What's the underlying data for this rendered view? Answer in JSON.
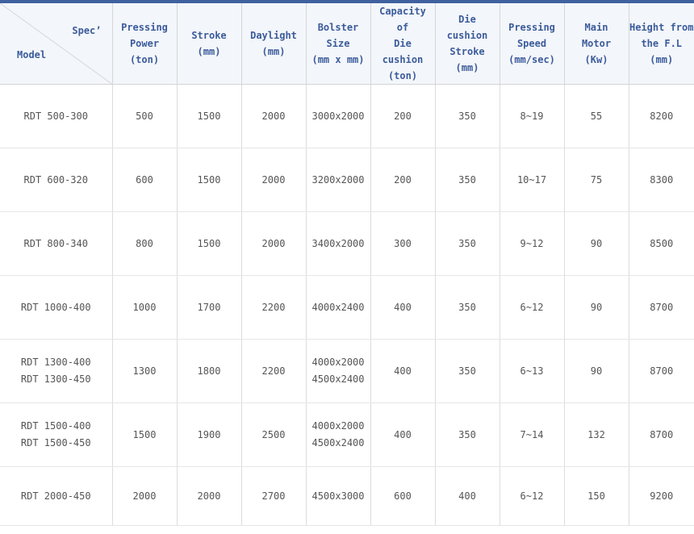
{
  "colors": {
    "top_bar": "#40619f",
    "header_bg": "#f3f6fa",
    "header_text": "#3b5b9b",
    "body_text": "#555555",
    "grid_vertical": "#dcdcdc",
    "grid_horizontal": "#e6e6e6",
    "diagonal_line": "#d8d8d8"
  },
  "table": {
    "corner": {
      "spec_label": "Spec’",
      "model_label": "Model"
    },
    "columns": [
      {
        "id": "pressing-power",
        "lines": [
          "Pressing",
          "Power",
          "(ton)"
        ]
      },
      {
        "id": "stroke",
        "lines": [
          "Stroke",
          "(mm)"
        ]
      },
      {
        "id": "daylight",
        "lines": [
          "Daylight",
          "(mm)"
        ]
      },
      {
        "id": "bolster-size",
        "lines": [
          "Bolster",
          "Size",
          "(mm x mm)"
        ]
      },
      {
        "id": "die-cushion-capacity",
        "lines": [
          "Capacity of",
          "Die cushion",
          "(ton)"
        ]
      },
      {
        "id": "die-cushion-stroke",
        "lines": [
          "Die cushion",
          "Stroke",
          "(mm)"
        ]
      },
      {
        "id": "pressing-speed",
        "lines": [
          "Pressing",
          "Speed",
          "(mm/sec)"
        ]
      },
      {
        "id": "main-motor",
        "lines": [
          "Main",
          "Motor",
          "(Kw)"
        ]
      },
      {
        "id": "height-fl",
        "lines": [
          "Height from",
          "the F.L",
          "(mm)"
        ]
      }
    ],
    "rows": [
      {
        "model": [
          "RDT 500-300"
        ],
        "pressing_power": "500",
        "stroke": "1500",
        "daylight": "2000",
        "bolster_size": [
          "3000x2000"
        ],
        "die_cushion_capacity": "200",
        "die_cushion_stroke": "350",
        "pressing_speed": "8~19",
        "main_motor": "55",
        "height_fl": "8200"
      },
      {
        "model": [
          "RDT 600-320"
        ],
        "pressing_power": "600",
        "stroke": "1500",
        "daylight": "2000",
        "bolster_size": [
          "3200x2000"
        ],
        "die_cushion_capacity": "200",
        "die_cushion_stroke": "350",
        "pressing_speed": "10~17",
        "main_motor": "75",
        "height_fl": "8300"
      },
      {
        "model": [
          "RDT 800-340"
        ],
        "pressing_power": "800",
        "stroke": "1500",
        "daylight": "2000",
        "bolster_size": [
          "3400x2000"
        ],
        "die_cushion_capacity": "300",
        "die_cushion_stroke": "350",
        "pressing_speed": "9~12",
        "main_motor": "90",
        "height_fl": "8500"
      },
      {
        "model": [
          "RDT 1000-400"
        ],
        "pressing_power": "1000",
        "stroke": "1700",
        "daylight": "2200",
        "bolster_size": [
          "4000x2400"
        ],
        "die_cushion_capacity": "400",
        "die_cushion_stroke": "350",
        "pressing_speed": "6~12",
        "main_motor": "90",
        "height_fl": "8700"
      },
      {
        "model": [
          "RDT 1300-400",
          "RDT 1300-450"
        ],
        "pressing_power": "1300",
        "stroke": "1800",
        "daylight": "2200",
        "bolster_size": [
          "4000x2000",
          "4500x2400"
        ],
        "die_cushion_capacity": "400",
        "die_cushion_stroke": "350",
        "pressing_speed": "6~13",
        "main_motor": "90",
        "height_fl": "8700"
      },
      {
        "model": [
          "RDT 1500-400",
          "RDT 1500-450"
        ],
        "pressing_power": "1500",
        "stroke": "1900",
        "daylight": "2500",
        "bolster_size": [
          "4000x2000",
          "4500x2400"
        ],
        "die_cushion_capacity": "400",
        "die_cushion_stroke": "350",
        "pressing_speed": "7~14",
        "main_motor": "132",
        "height_fl": "8700"
      },
      {
        "model": [
          "RDT 2000-450"
        ],
        "pressing_power": "2000",
        "stroke": "2000",
        "daylight": "2700",
        "bolster_size": [
          "4500x3000"
        ],
        "die_cushion_capacity": "600",
        "die_cushion_stroke": "400",
        "pressing_speed": "6~12",
        "main_motor": "150",
        "height_fl": "9200"
      }
    ]
  }
}
